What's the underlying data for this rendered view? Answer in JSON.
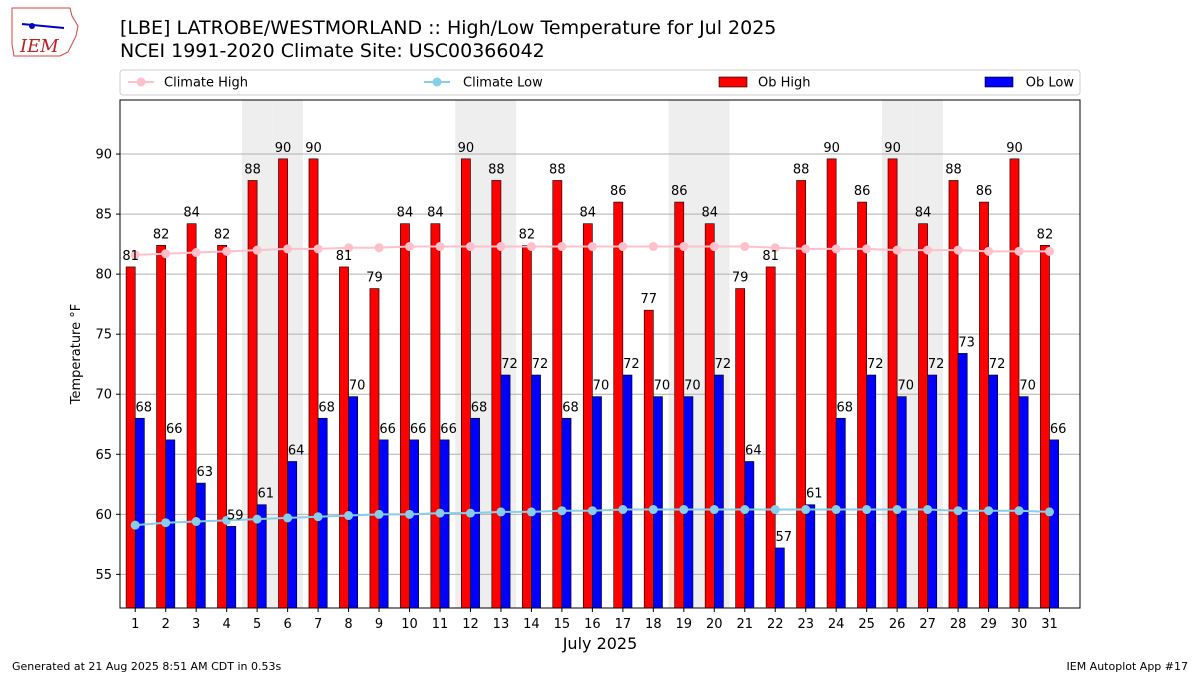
{
  "logo": {
    "text": "IEM"
  },
  "chart_data": {
    "type": "bar",
    "title": "[LBE] LATROBE/WESTMORLAND :: High/Low Temperature for Jul 2025",
    "subtitle": "NCEI 1991-2020 Climate Site: USC00366042",
    "xlabel": "July 2025",
    "ylabel": "Temperature °F",
    "ylim": [
      52.2,
      94.5
    ],
    "yticks": [
      55,
      60,
      65,
      70,
      75,
      80,
      85,
      90
    ],
    "grid": true,
    "legend_position": "top",
    "categories": [
      "1",
      "2",
      "3",
      "4",
      "5",
      "6",
      "7",
      "8",
      "9",
      "10",
      "11",
      "12",
      "13",
      "14",
      "15",
      "16",
      "17",
      "18",
      "19",
      "20",
      "21",
      "22",
      "23",
      "24",
      "25",
      "26",
      "27",
      "28",
      "29",
      "30",
      "31"
    ],
    "weekend_days": [
      5,
      6,
      12,
      13,
      19,
      20,
      26,
      27
    ],
    "series": [
      {
        "name": "Ob High",
        "kind": "bar",
        "color": "#ff0000",
        "labels": [
          81,
          82,
          84,
          82,
          88,
          90,
          90,
          81,
          79,
          84,
          84,
          90,
          88,
          82,
          88,
          84,
          86,
          77,
          86,
          84,
          79,
          81,
          88,
          90,
          86,
          90,
          84,
          88,
          86,
          90,
          82
        ],
        "values": [
          80.6,
          82.4,
          84.2,
          82.4,
          87.8,
          89.6,
          89.6,
          80.6,
          78.8,
          84.2,
          84.2,
          89.6,
          87.8,
          82.4,
          87.8,
          84.2,
          86.0,
          77.0,
          86.0,
          84.2,
          78.8,
          80.6,
          87.8,
          89.6,
          86.0,
          89.6,
          84.2,
          87.8,
          86.0,
          89.6,
          82.4
        ]
      },
      {
        "name": "Ob Low",
        "kind": "bar",
        "color": "#0000ff",
        "labels": [
          68,
          66,
          63,
          59,
          61,
          64,
          68,
          70,
          66,
          66,
          66,
          68,
          72,
          72,
          68,
          70,
          72,
          70,
          70,
          72,
          64,
          57,
          61,
          68,
          72,
          70,
          72,
          73,
          72,
          70,
          66
        ],
        "values": [
          68.0,
          66.2,
          62.6,
          59.0,
          60.8,
          64.4,
          68.0,
          69.8,
          66.2,
          66.2,
          66.2,
          68.0,
          71.6,
          71.6,
          68.0,
          69.8,
          71.6,
          69.8,
          69.8,
          71.6,
          64.4,
          57.2,
          60.8,
          68.0,
          71.6,
          69.8,
          71.6,
          73.4,
          71.6,
          69.8,
          66.2
        ]
      },
      {
        "name": "Climate High",
        "kind": "line",
        "color": "#ffc0cb",
        "values": [
          81.6,
          81.7,
          81.8,
          81.9,
          82.0,
          82.1,
          82.1,
          82.2,
          82.2,
          82.3,
          82.3,
          82.3,
          82.3,
          82.3,
          82.3,
          82.3,
          82.3,
          82.3,
          82.3,
          82.3,
          82.3,
          82.2,
          82.1,
          82.1,
          82.1,
          82.0,
          82.0,
          82.0,
          81.9,
          81.9,
          81.9
        ]
      },
      {
        "name": "Climate Low",
        "kind": "line",
        "color": "#87ceeb",
        "values": [
          59.1,
          59.3,
          59.4,
          59.5,
          59.6,
          59.7,
          59.8,
          59.9,
          60.0,
          60.0,
          60.1,
          60.1,
          60.2,
          60.2,
          60.3,
          60.3,
          60.4,
          60.4,
          60.4,
          60.4,
          60.4,
          60.4,
          60.4,
          60.4,
          60.4,
          60.4,
          60.4,
          60.3,
          60.3,
          60.3,
          60.2
        ]
      }
    ],
    "legend_order": [
      "Climate High",
      "Climate Low",
      "Ob High",
      "Ob Low"
    ]
  },
  "footer": {
    "generated": "Generated at 21 Aug 2025 8:51 AM CDT in 0.53s",
    "app": "IEM Autoplot App #17"
  }
}
